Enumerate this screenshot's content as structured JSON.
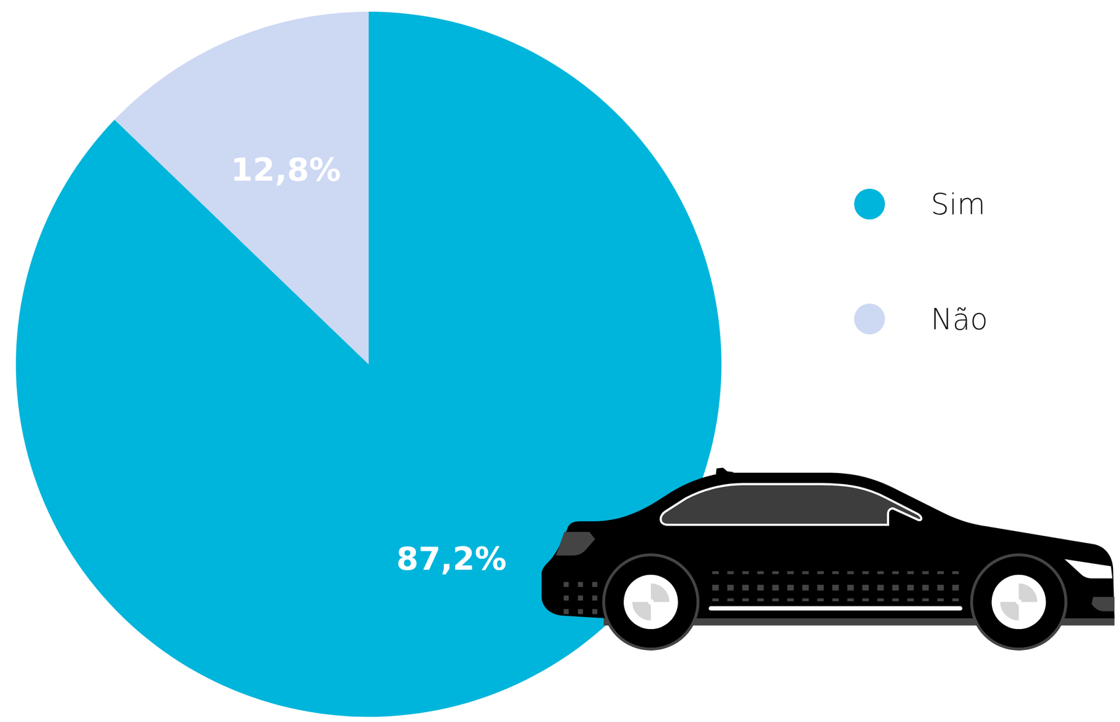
{
  "chart_data": {
    "type": "pie",
    "categories": [
      "Sim",
      "Não"
    ],
    "values": [
      87.2,
      12.8
    ],
    "value_labels": [
      "87,2%",
      "12,8%"
    ],
    "colors": [
      "#00b5db",
      "#cdd8f3"
    ],
    "data_labels": true,
    "legend": "right"
  }
}
